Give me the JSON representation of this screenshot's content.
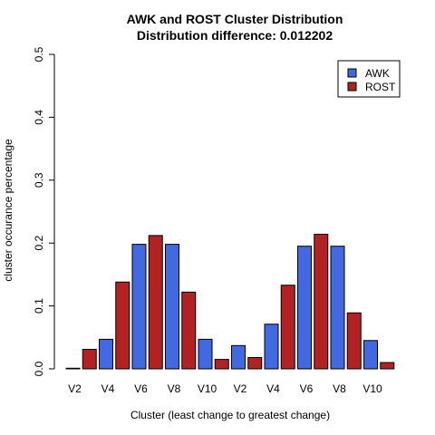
{
  "chart_data": {
    "type": "bar",
    "title": "AWK and ROST Cluster Distribution",
    "subtitle": "Distribution difference: 0.012202",
    "xlabel": "Cluster (least change to greatest change)",
    "ylabel": "cluster occurance percentage",
    "ylim": [
      0,
      0.5
    ],
    "yticks": [
      "0.0",
      "0.1",
      "0.2",
      "0.3",
      "0.4",
      "0.5"
    ],
    "ytick_values": [
      0,
      0.1,
      0.2,
      0.3,
      0.4,
      0.5
    ],
    "x_tick_labels": [
      "V2",
      "V4",
      "V6",
      "V8",
      "V10",
      "V2",
      "V4",
      "V6",
      "V8",
      "V10"
    ],
    "legend_position": "top-right",
    "grid": false,
    "colors": {
      "AWK": "#4169e1",
      "ROST": "#b22222"
    },
    "bars": [
      {
        "series": "AWK",
        "value": 0.001
      },
      {
        "series": "ROST",
        "value": 0.031
      },
      {
        "series": "AWK",
        "value": 0.047
      },
      {
        "series": "ROST",
        "value": 0.138
      },
      {
        "series": "AWK",
        "value": 0.198
      },
      {
        "series": "ROST",
        "value": 0.212
      },
      {
        "series": "AWK",
        "value": 0.198
      },
      {
        "series": "ROST",
        "value": 0.122
      },
      {
        "series": "AWK",
        "value": 0.047
      },
      {
        "series": "ROST",
        "value": 0.015
      },
      {
        "series": "AWK",
        "value": 0.037
      },
      {
        "series": "ROST",
        "value": 0.018
      },
      {
        "series": "AWK",
        "value": 0.071
      },
      {
        "series": "ROST",
        "value": 0.133
      },
      {
        "series": "AWK",
        "value": 0.195
      },
      {
        "series": "ROST",
        "value": 0.214
      },
      {
        "series": "AWK",
        "value": 0.195
      },
      {
        "series": "ROST",
        "value": 0.089
      },
      {
        "series": "AWK",
        "value": 0.045
      },
      {
        "series": "ROST",
        "value": 0.01
      }
    ],
    "series": [
      {
        "name": "AWK"
      },
      {
        "name": "ROST"
      }
    ]
  }
}
